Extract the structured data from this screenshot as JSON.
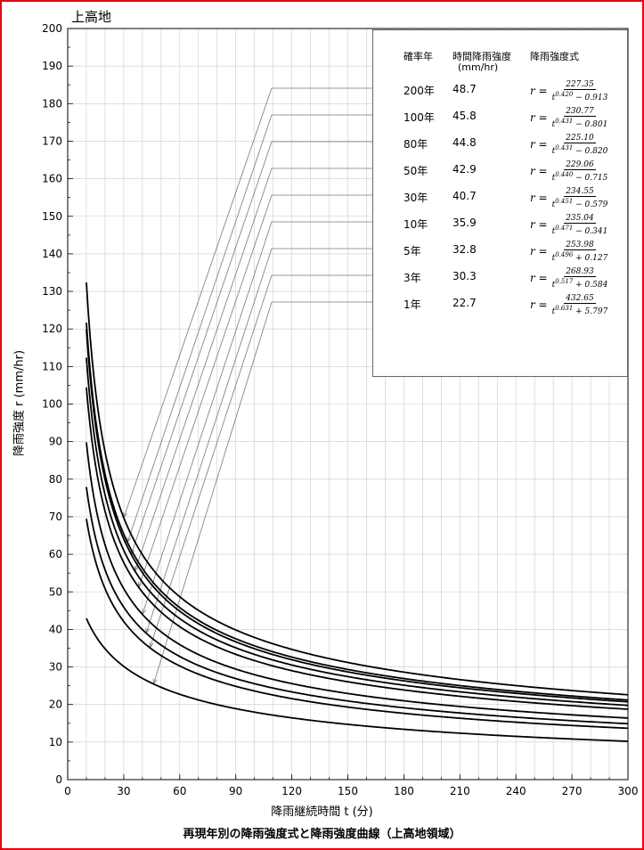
{
  "page": {
    "place_label": "上高地",
    "caption": "再現年別の降雨強度式と降雨強度曲線（上高地領域）",
    "border_color": "#e8000b"
  },
  "legend": {
    "header_period": "確率年",
    "header_intensity_line1": "時間降雨強度",
    "header_intensity_line2": "(mm/hr)",
    "header_formula": "降雨強度式",
    "rows": [
      {
        "period": "200年",
        "intensity": "48.7",
        "lhs": "r =",
        "num": "227.35",
        "den": "t^0.420 − 0.913"
      },
      {
        "period": "100年",
        "intensity": "45.8",
        "lhs": "r =",
        "num": "230.77",
        "den": "t^0.431 − 0.801"
      },
      {
        "period": "80年",
        "intensity": "44.8",
        "lhs": "r =",
        "num": "225.10",
        "den": "t^0.431 − 0.820"
      },
      {
        "period": "50年",
        "intensity": "42.9",
        "lhs": "r =",
        "num": "229.06",
        "den": "t^0.440 − 0.715"
      },
      {
        "period": "30年",
        "intensity": "40.7",
        "lhs": "r =",
        "num": "234.55",
        "den": "t^0.451 − 0.579"
      },
      {
        "period": "10年",
        "intensity": "35.9",
        "lhs": "r =",
        "num": "235.04",
        "den": "t^0.471 − 0.341"
      },
      {
        "period": "5年",
        "intensity": "32.8",
        "lhs": "r =",
        "num": "253.98",
        "den": "t^0.496 + 0.127"
      },
      {
        "period": "3年",
        "intensity": "30.3",
        "lhs": "r =",
        "num": "268.93",
        "den": "t^0.517 + 0.584"
      },
      {
        "period": "1年",
        "intensity": "22.7",
        "lhs": "r =",
        "num": "432.65",
        "den": "t^0.631 + 5.797"
      }
    ]
  },
  "chart_data": {
    "type": "line",
    "xlabel": "降雨継続時間 t (分)",
    "ylabel": "降雨強度 r (mm/hr)",
    "xlim": [
      0,
      300
    ],
    "ylim": [
      0,
      200
    ],
    "x_ticks": [
      0,
      30,
      60,
      90,
      120,
      150,
      180,
      210,
      240,
      270,
      300
    ],
    "y_ticks": [
      0,
      10,
      20,
      30,
      40,
      50,
      60,
      70,
      80,
      90,
      100,
      110,
      120,
      130,
      140,
      150,
      160,
      170,
      180,
      190,
      200
    ],
    "grid": true,
    "legend_position": "top-right",
    "curve_color": "#000000",
    "grid_color": "#cccccc",
    "pointer_color": "#777777",
    "t_start": 10,
    "t_end": 300,
    "series": [
      {
        "name": "200年",
        "a": 227.35,
        "n": 0.42,
        "b": -0.913,
        "pointer_t": 30
      },
      {
        "name": "100年",
        "a": 230.77,
        "n": 0.431,
        "b": -0.801,
        "pointer_t": 32
      },
      {
        "name": "80年",
        "a": 225.1,
        "n": 0.431,
        "b": -0.82,
        "pointer_t": 34
      },
      {
        "name": "50年",
        "a": 229.06,
        "n": 0.44,
        "b": -0.715,
        "pointer_t": 36
      },
      {
        "name": "30年",
        "a": 234.55,
        "n": 0.451,
        "b": -0.579,
        "pointer_t": 38
      },
      {
        "name": "10年",
        "a": 235.04,
        "n": 0.471,
        "b": -0.341,
        "pointer_t": 40
      },
      {
        "name": "5年",
        "a": 253.98,
        "n": 0.496,
        "b": 0.127,
        "pointer_t": 42
      },
      {
        "name": "3年",
        "a": 268.93,
        "n": 0.517,
        "b": 0.584,
        "pointer_t": 44
      },
      {
        "name": "1年",
        "a": 432.65,
        "n": 0.631,
        "b": 5.797,
        "pointer_t": 46
      }
    ]
  }
}
